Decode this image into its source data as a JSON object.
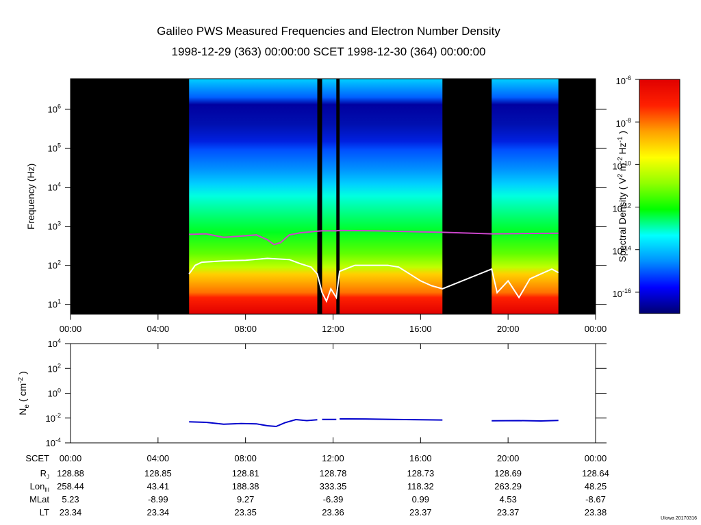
{
  "header": {
    "title": "Galileo PWS Measured Frequencies and Electron Number Density",
    "subtitle": "1998-12-29 (363) 00:00:00 SCET 1998-12-30 (364) 00:00:00"
  },
  "credit": "UIowa 20170316",
  "chart_data": [
    {
      "type": "heatmap",
      "name": "spectrogram",
      "ylabel": "Frequency (Hz)",
      "yscale": "log",
      "ylim": [
        5.6,
        6000000
      ],
      "xlim": [
        0,
        24
      ],
      "x_ticks": [
        "00:00",
        "04:00",
        "08:00",
        "12:00",
        "16:00",
        "20:00",
        "00:00"
      ],
      "y_ticks": [
        {
          "value": 10,
          "mant": "10",
          "exp": "1"
        },
        {
          "value": 100,
          "mant": "10",
          "exp": "2"
        },
        {
          "value": 1000,
          "mant": "10",
          "exp": "3"
        },
        {
          "value": 10000,
          "mant": "10",
          "exp": "4"
        },
        {
          "value": 100000,
          "mant": "10",
          "exp": "5"
        },
        {
          "value": 1000000,
          "mant": "10",
          "exp": "6"
        }
      ],
      "data_segments": [
        [
          5.42,
          11.28
        ],
        [
          11.5,
          12.15
        ],
        [
          12.3,
          17.0
        ],
        [
          19.25,
          22.3
        ]
      ],
      "colorbar": {
        "label": "Spectral Density",
        "label_units": "( V2 m-2 Hz-1 )",
        "scale": "log",
        "range": [
          1e-17,
          1e-06
        ],
        "ticks": [
          {
            "value": 1e-06,
            "mant": "10",
            "exp": "-6"
          },
          {
            "value": 1e-08,
            "mant": "10",
            "exp": "-8"
          },
          {
            "value": 1e-10,
            "mant": "10",
            "exp": "-10"
          },
          {
            "value": 1e-12,
            "mant": "10",
            "exp": "-12"
          },
          {
            "value": 1e-14,
            "mant": "10",
            "exp": "-14"
          },
          {
            "value": 1e-16,
            "mant": "10",
            "exp": "-16"
          }
        ],
        "colors": [
          "#000070",
          "#0000ff",
          "#0090ff",
          "#00ffff",
          "#00ff00",
          "#90ff00",
          "#ffff00",
          "#ffa000",
          "#ff2000",
          "#e00000"
        ]
      },
      "overlay_lines": [
        {
          "color": "#cc44cc",
          "points": [
            [
              5.42,
              620
            ],
            [
              6.2,
              640
            ],
            [
              7.0,
              520
            ],
            [
              7.8,
              560
            ],
            [
              8.5,
              600
            ],
            [
              9.0,
              450
            ],
            [
              9.3,
              340
            ],
            [
              9.6,
              380
            ],
            [
              10.0,
              600
            ],
            [
              10.5,
              680
            ],
            [
              11.2,
              740
            ],
            [
              11.5,
              760
            ],
            [
              12.15,
              760
            ],
            [
              12.3,
              780
            ],
            [
              14.0,
              760
            ],
            [
              16.0,
              720
            ],
            [
              17.0,
              700
            ],
            [
              19.25,
              640
            ],
            [
              20.5,
              650
            ],
            [
              22.3,
              660
            ]
          ]
        },
        {
          "color": "#ffffff",
          "points": [
            [
              5.42,
              60
            ],
            [
              5.7,
              100
            ],
            [
              6.0,
              120
            ],
            [
              7.0,
              130
            ],
            [
              8.0,
              135
            ],
            [
              9.0,
              150
            ],
            [
              10.0,
              140
            ],
            [
              10.5,
              110
            ],
            [
              11.0,
              90
            ],
            [
              11.28,
              60
            ],
            [
              11.5,
              20
            ],
            [
              11.7,
              12
            ],
            [
              11.9,
              25
            ],
            [
              12.15,
              15
            ],
            [
              12.3,
              70
            ],
            [
              13.0,
              100
            ],
            [
              14.5,
              100
            ],
            [
              15.0,
              90
            ],
            [
              15.5,
              60
            ],
            [
              16.0,
              40
            ],
            [
              16.5,
              30
            ],
            [
              17.0,
              25
            ],
            [
              19.25,
              80
            ],
            [
              19.5,
              20
            ],
            [
              20.0,
              40
            ],
            [
              20.5,
              15
            ],
            [
              21.0,
              45
            ],
            [
              21.5,
              60
            ],
            [
              22.0,
              80
            ],
            [
              22.3,
              65
            ]
          ]
        }
      ]
    },
    {
      "type": "line",
      "name": "electron-density",
      "ylabel": "Ne ( cm-2 )",
      "yscale": "log",
      "ylim": [
        0.0001,
        10000
      ],
      "xlim": [
        0,
        24
      ],
      "y_ticks": [
        {
          "value": 0.0001,
          "mant": "10",
          "exp": "-4"
        },
        {
          "value": 0.01,
          "mant": "10",
          "exp": "-2"
        },
        {
          "value": 1,
          "mant": "10",
          "exp": "0"
        },
        {
          "value": 100,
          "mant": "10",
          "exp": "2"
        },
        {
          "value": 10000,
          "mant": "10",
          "exp": "4"
        }
      ],
      "series": [
        {
          "color": "#0000cc",
          "segments": [
            [
              [
                5.42,
                0.005
              ],
              [
                6.2,
                0.0045
              ],
              [
                7.0,
                0.0032
              ],
              [
                7.8,
                0.0036
              ],
              [
                8.5,
                0.0034
              ],
              [
                9.0,
                0.0024
              ],
              [
                9.4,
                0.0021
              ],
              [
                9.8,
                0.0042
              ],
              [
                10.3,
                0.0075
              ],
              [
                10.8,
                0.0062
              ],
              [
                11.28,
                0.0072
              ]
            ],
            [
              [
                11.5,
                0.0078
              ],
              [
                12.15,
                0.0078
              ]
            ],
            [
              [
                12.3,
                0.0085
              ],
              [
                13.5,
                0.0084
              ],
              [
                15.0,
                0.0076
              ],
              [
                16.0,
                0.0072
              ],
              [
                17.0,
                0.007
              ]
            ],
            [
              [
                19.25,
                0.006
              ],
              [
                20.5,
                0.0062
              ],
              [
                21.5,
                0.0058
              ],
              [
                22.3,
                0.0064
              ]
            ]
          ]
        }
      ]
    }
  ],
  "ephemeris": {
    "times": [
      "00:00",
      "04:00",
      "08:00",
      "12:00",
      "16:00",
      "20:00",
      "00:00"
    ],
    "rows": [
      {
        "label": "R",
        "sub": "J",
        "values": [
          "128.88",
          "128.85",
          "128.81",
          "128.78",
          "128.73",
          "128.69",
          "128.64"
        ]
      },
      {
        "label": "Lon",
        "sub": "III",
        "values": [
          "258.44",
          "43.41",
          "188.38",
          "333.35",
          "118.32",
          "263.29",
          "48.25"
        ]
      },
      {
        "label": "MLat",
        "sub": "",
        "values": [
          "5.23",
          "-8.99",
          "9.27",
          "-6.39",
          "0.99",
          "4.53",
          "-8.67"
        ]
      },
      {
        "label": "LT",
        "sub": "",
        "values": [
          "23.34",
          "23.34",
          "23.35",
          "23.36",
          "23.37",
          "23.37",
          "23.38"
        ]
      }
    ]
  }
}
